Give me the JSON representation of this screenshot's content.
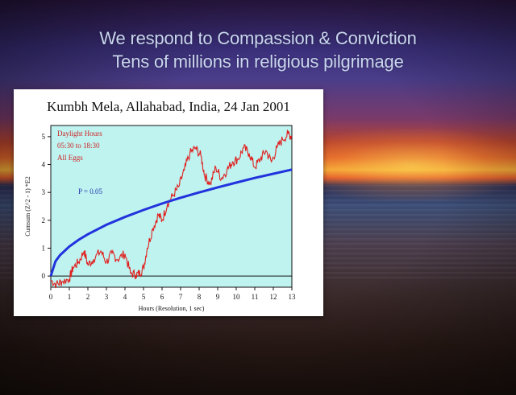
{
  "slide": {
    "headline_1": "We respond to Compassion & Conviction",
    "headline_2": "Tens of millions in religious pilgrimage"
  },
  "colors": {
    "plot_bg": "#bff3f0",
    "data_line": "#e0201e",
    "expectation_curve": "#2233dd",
    "legend_text": "#cc2222",
    "card_bg": "#ffffff"
  },
  "chart_data": {
    "type": "line",
    "title": "Kumbh Mela, Allahabad, India, 24 Jan 2001",
    "xlabel": "Hours (Resolution, 1 sec)",
    "ylabel": "Cumsum (Z^2 - 1) *E2",
    "xlim": [
      0,
      13
    ],
    "ylim": [
      -0.4,
      5.4
    ],
    "x_ticks": [
      0,
      1,
      2,
      3,
      4,
      5,
      6,
      7,
      8,
      9,
      10,
      11,
      12,
      13
    ],
    "y_ticks": [
      0,
      1,
      2,
      3,
      4,
      5
    ],
    "legend": [
      "Daylight Hours",
      "05:30 to 18:30",
      "All Eggs"
    ],
    "annotation": "P = 0.05",
    "series": [
      {
        "values_x": [
          0,
          0.3,
          0.6,
          1.0,
          1.2,
          1.5,
          1.8,
          2.0,
          2.3,
          2.7,
          3.0,
          3.3,
          3.6,
          4.0,
          4.3,
          4.6,
          4.8,
          5.0,
          5.2,
          5.5,
          5.8,
          6.0,
          6.3,
          6.6,
          6.9,
          7.2,
          7.5,
          7.8,
          8.1,
          8.3,
          8.6,
          8.9,
          9.2,
          9.5,
          9.8,
          10.1,
          10.4,
          10.7,
          11.0,
          11.3,
          11.6,
          11.9,
          12.2,
          12.5,
          12.8,
          13.0
        ],
        "values_y": [
          -0.15,
          -0.3,
          -0.2,
          -0.1,
          0.3,
          0.5,
          0.9,
          0.4,
          0.6,
          0.9,
          0.5,
          0.8,
          0.6,
          0.8,
          0.1,
          0.05,
          0.1,
          0.3,
          1.0,
          1.7,
          2.2,
          2.0,
          2.6,
          2.9,
          3.2,
          3.8,
          4.4,
          4.6,
          4.3,
          3.6,
          3.3,
          3.9,
          3.5,
          3.8,
          4.1,
          4.2,
          4.6,
          4.4,
          3.9,
          4.2,
          4.5,
          4.1,
          4.6,
          4.9,
          5.1,
          5.0
        ]
      },
      {
        "values_x": [
          0,
          0.25,
          0.5,
          1,
          1.5,
          2,
          3,
          4,
          5,
          6,
          7,
          8,
          9,
          10,
          11,
          12,
          13
        ],
        "values_y": [
          0,
          0.53,
          0.75,
          1.06,
          1.3,
          1.5,
          1.84,
          2.12,
          2.37,
          2.6,
          2.81,
          3.0,
          3.18,
          3.35,
          3.52,
          3.67,
          3.82
        ]
      }
    ]
  }
}
